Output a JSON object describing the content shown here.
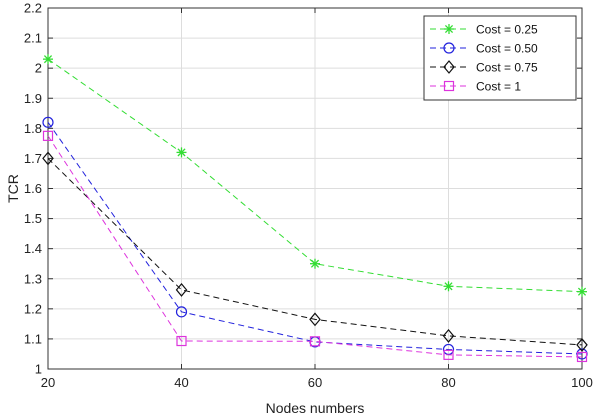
{
  "chart_data": {
    "type": "line",
    "title": "",
    "xlabel": "Nodes numbers",
    "ylabel": "TCR",
    "x": [
      20,
      40,
      60,
      80,
      100
    ],
    "xlim": [
      20,
      100
    ],
    "ylim": [
      1,
      2.2
    ],
    "xticks": [
      20,
      40,
      60,
      80,
      100
    ],
    "yticks": [
      1,
      1.1,
      1.2,
      1.3,
      1.4,
      1.5,
      1.6,
      1.7,
      1.8,
      1.9,
      2,
      2.1,
      2.2
    ],
    "grid": true,
    "legend_position": "top-right",
    "series": [
      {
        "name": "Cost = 0.25",
        "values": [
          2.03,
          1.72,
          1.35,
          1.275,
          1.257
        ],
        "color": "#33dd33",
        "marker": "asterisk",
        "line_style": "dashed"
      },
      {
        "name": "Cost = 0.50",
        "values": [
          1.82,
          1.19,
          1.09,
          1.065,
          1.05
        ],
        "color": "#2222dd",
        "marker": "circle",
        "line_style": "dashed"
      },
      {
        "name": "Cost = 0.75",
        "values": [
          1.7,
          1.263,
          1.165,
          1.11,
          1.08
        ],
        "color": "#111111",
        "marker": "diamond",
        "line_style": "dashed"
      },
      {
        "name": "Cost = 1",
        "values": [
          1.775,
          1.093,
          1.092,
          1.047,
          1.04
        ],
        "color": "#dd33dd",
        "marker": "square",
        "line_style": "dashed"
      }
    ]
  }
}
